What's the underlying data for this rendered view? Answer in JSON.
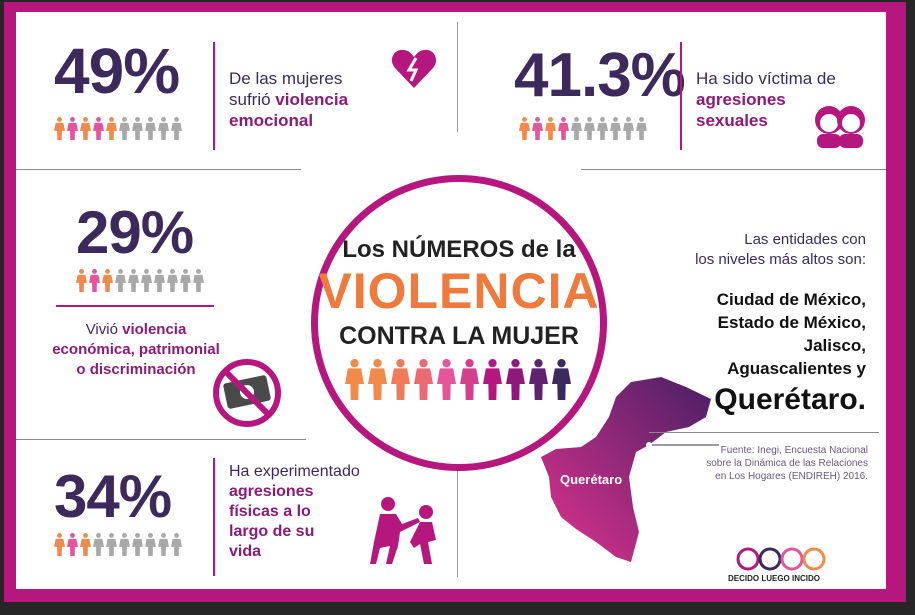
{
  "stats": {
    "emotional": {
      "value": "49%",
      "line1": "De las mujeres",
      "line2_plain": "sufrió ",
      "line2_hl": "violencia",
      "line3_hl": "emocional",
      "highlighted_people": 5,
      "total_people": 10
    },
    "sexual": {
      "value": "41.3%",
      "line1": "Ha sido víctima de",
      "line2_hl": "agresiones",
      "line3_hl": "sexuales",
      "highlighted_people": 4,
      "total_people": 10
    },
    "economic": {
      "value": "29%",
      "line1_plain": "Vivió ",
      "line1_hl": "violencia",
      "line2_hl": "económica, patrimonial",
      "line3_hl": "o discriminación",
      "highlighted_people": 3,
      "total_people": 10
    },
    "physical": {
      "value": "34%",
      "line1": "Ha experimentado",
      "line2_hl": "agresiones",
      "line3_hl": "físicas a lo",
      "line4_hl": "largo de su",
      "line5_hl": "vida",
      "highlighted_people": 3,
      "total_people": 10
    }
  },
  "center": {
    "line1": "Los NÚMEROS de la",
    "line2": "VIOLENCIA",
    "line3": "CONTRA LA MUJER"
  },
  "entities": {
    "intro1": "Las entidades con",
    "intro2": "los niveles más altos son:",
    "states": [
      "Ciudad de México,",
      "Estado de México,",
      "Jalisco,",
      "Aguascalientes y"
    ],
    "last": "Querétaro.",
    "map_label": "Querétaro"
  },
  "source": {
    "line1": "Fuente: Inegi, Encuesta Nacional",
    "line2": "sobre la Dinámica de las Relaciones",
    "line3": "en Los Hogares (ENDIREH) 2016."
  },
  "logo": {
    "text": "DECIDO LUEGO INCIDO"
  },
  "colors": {
    "purple": "#3d2a5c",
    "magenta": "#b5177f",
    "orange": "#f28a4a",
    "pink": "#e5559a",
    "gray": "#a8a8a8"
  }
}
